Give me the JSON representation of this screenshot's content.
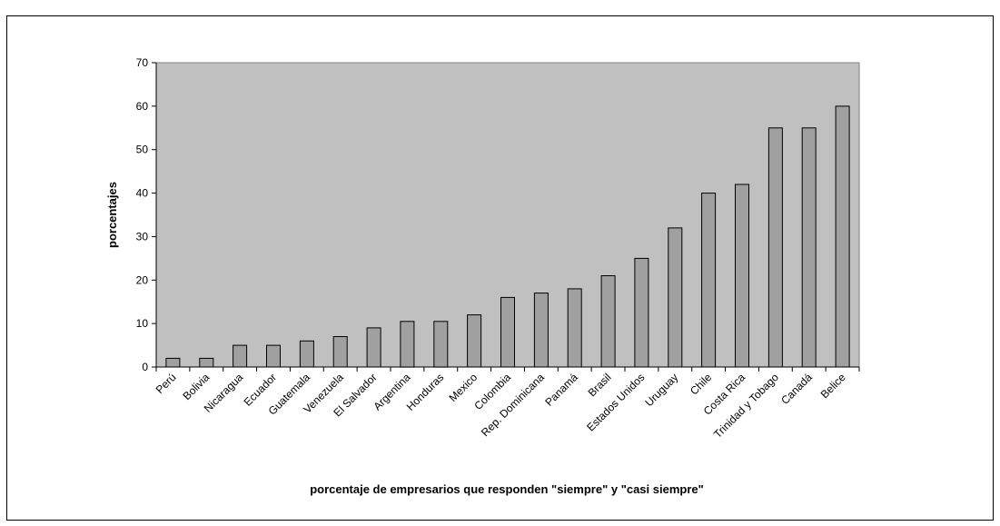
{
  "chart_data": {
    "type": "bar",
    "title": "",
    "xlabel": "porcentaje de empresarios que responden \"siempre\" y \"casi siempre\"",
    "ylabel": "porcentajes",
    "ylim": [
      0,
      70
    ],
    "yticks": [
      0,
      10,
      20,
      30,
      40,
      50,
      60,
      70
    ],
    "grid": false,
    "legend": "none",
    "plot_background": "#c0c0c0",
    "bar_color": "#a0a0a0",
    "bar_edge_color": "#000000",
    "categories": [
      "Perú",
      "Bolivia",
      "Nicaragua",
      "Ecuador",
      "Guatemala",
      "Venezuela",
      "El Salvador",
      "Argentina",
      "Honduras",
      "Mexico",
      "Colombia",
      "Rep. Dominicana",
      "Panamá",
      "Brasil",
      "Estados Unidos",
      "Uruguay",
      "Chile",
      "Costa Rica",
      "Trinidad y Tobago",
      "Canadá",
      "Belice"
    ],
    "values": [
      2,
      2,
      5,
      5,
      6,
      7,
      9,
      10.5,
      10.5,
      12,
      16,
      17,
      18,
      21,
      25,
      32,
      40,
      42,
      55,
      55,
      60
    ]
  }
}
